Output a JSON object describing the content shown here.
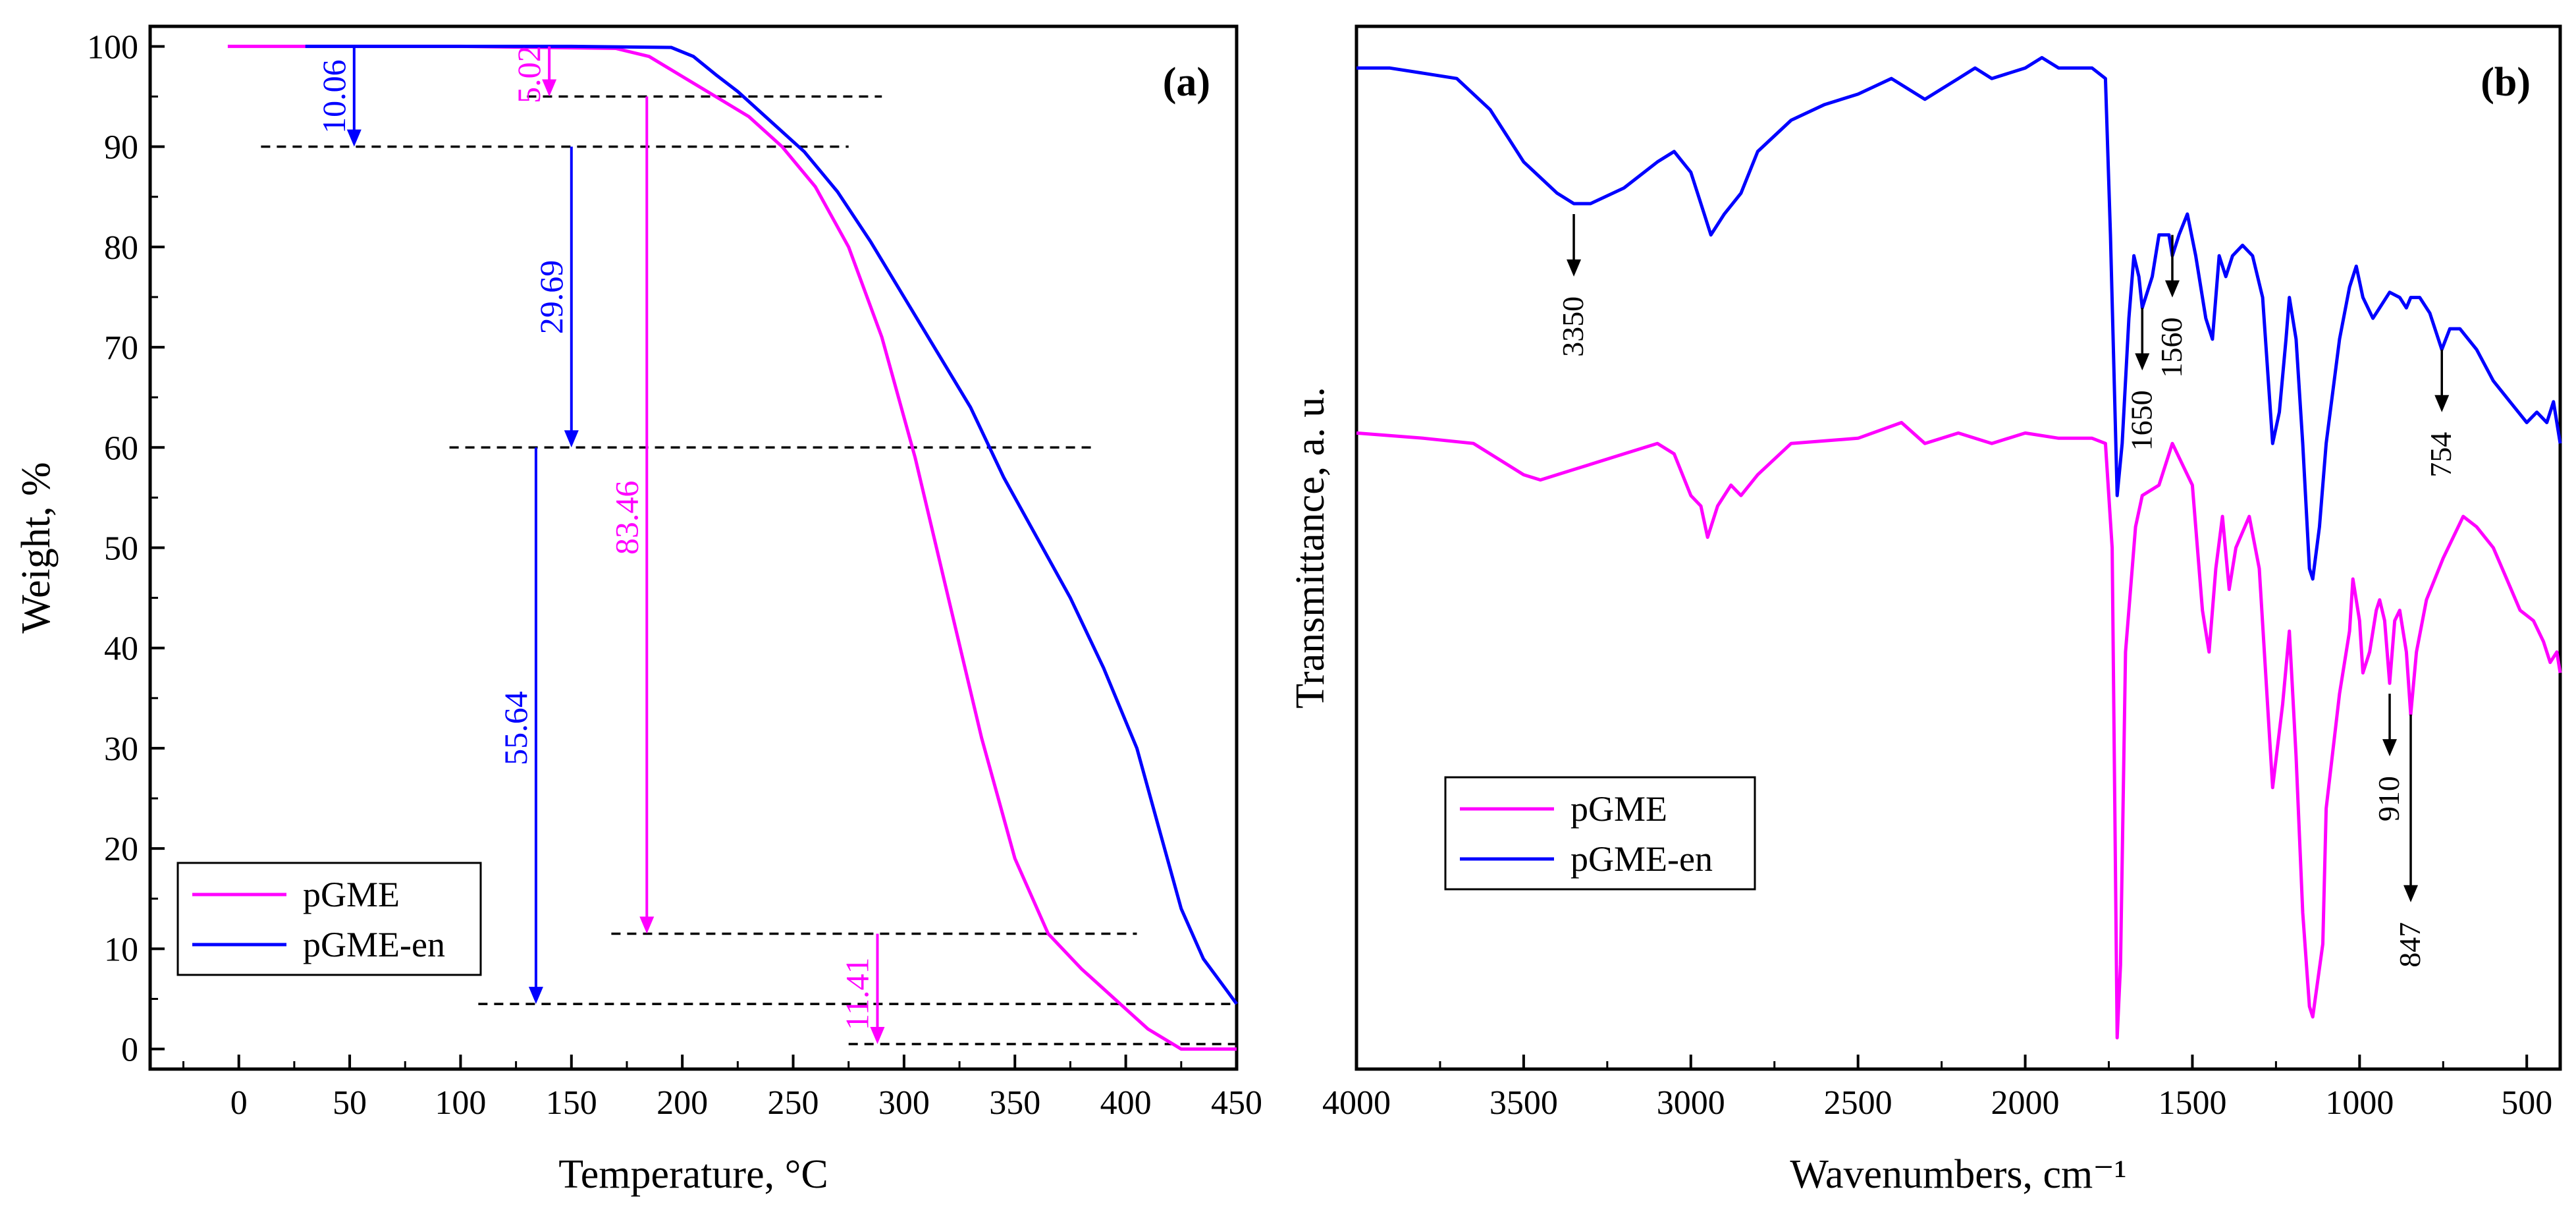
{
  "figure": {
    "font": "serif",
    "colors": {
      "pgme": "#ff00ff",
      "pgme_en": "#0000ff",
      "axis": "#000000",
      "annotation": "#000000"
    }
  },
  "chart_data": [
    {
      "id": "a",
      "type": "line",
      "panel_label": "(a)",
      "xlabel": "Temperature, °C",
      "ylabel": "Weight, %",
      "xlim": [
        -40,
        450
      ],
      "ylim": [
        -2,
        102
      ],
      "xticks": [
        0,
        50,
        100,
        150,
        200,
        250,
        300,
        350,
        400,
        450
      ],
      "yticks": [
        0,
        10,
        20,
        30,
        40,
        50,
        60,
        70,
        80,
        90,
        100
      ],
      "legend": {
        "position": "bottom-left",
        "entries": [
          "pGME",
          "pGME-en"
        ]
      },
      "series": [
        {
          "name": "pGME",
          "color": "#ff00ff",
          "points": [
            [
              -5,
              100
            ],
            [
              100,
              100
            ],
            [
              170,
              99.8
            ],
            [
              185,
              99
            ],
            [
              200,
              97
            ],
            [
              215,
              95
            ],
            [
              230,
              93
            ],
            [
              245,
              90
            ],
            [
              260,
              86
            ],
            [
              275,
              80
            ],
            [
              290,
              71
            ],
            [
              305,
              59
            ],
            [
              320,
              45
            ],
            [
              335,
              31
            ],
            [
              350,
              19
            ],
            [
              365,
              11.5
            ],
            [
              380,
              8
            ],
            [
              395,
              5
            ],
            [
              410,
              2
            ],
            [
              425,
              0
            ],
            [
              450,
              0
            ]
          ]
        },
        {
          "name": "pGME-en",
          "color": "#0000ff",
          "points": [
            [
              30,
              100
            ],
            [
              150,
              100
            ],
            [
              195,
              99.9
            ],
            [
              205,
              99
            ],
            [
              215,
              97.2
            ],
            [
              225,
              95.5
            ],
            [
              240,
              92.5
            ],
            [
              255,
              89.5
            ],
            [
              270,
              85.5
            ],
            [
              285,
              80.5
            ],
            [
              300,
              75
            ],
            [
              315,
              69.5
            ],
            [
              330,
              64
            ],
            [
              345,
              57
            ],
            [
              360,
              51
            ],
            [
              375,
              45
            ],
            [
              390,
              38
            ],
            [
              405,
              30
            ],
            [
              415,
              22
            ],
            [
              425,
              14
            ],
            [
              435,
              9
            ],
            [
              445,
              6
            ],
            [
              450,
              4.5
            ]
          ]
        }
      ],
      "reference_lines": [
        {
          "y": 95,
          "x": [
            130,
            290
          ]
        },
        {
          "y": 90,
          "x": [
            10,
            275
          ]
        },
        {
          "y": 60,
          "x": [
            95,
            385
          ]
        },
        {
          "y": 11.5,
          "x": [
            168,
            405
          ]
        },
        {
          "y": 4.5,
          "x": [
            108,
            450
          ]
        },
        {
          "y": 0.5,
          "x": [
            275,
            450
          ]
        }
      ],
      "annotations": [
        {
          "text": "10.06",
          "color": "#0000ff",
          "x": 52,
          "from": 100,
          "to": 90,
          "label_y": 95
        },
        {
          "text": "5.02",
          "color": "#ff00ff",
          "x": 140,
          "from": 100,
          "to": 95,
          "label_y": 97.2
        },
        {
          "text": "29.69",
          "color": "#0000ff",
          "x": 150,
          "from": 90,
          "to": 60,
          "label_y": 75
        },
        {
          "text": "83.46",
          "color": "#ff00ff",
          "x": 184,
          "from": 95,
          "to": 11.5,
          "label_y": 53
        },
        {
          "text": "55.64",
          "color": "#0000ff",
          "x": 134,
          "from": 60,
          "to": 4.5,
          "label_y": 32
        },
        {
          "text": "11.41",
          "color": "#ff00ff",
          "x": 288,
          "from": 11.5,
          "to": 0.5,
          "label_y": 5.5
        }
      ]
    },
    {
      "id": "b",
      "type": "line",
      "panel_label": "(b)",
      "xlabel": "Wavenumbers, cm⁻¹",
      "ylabel": "Transmittance, a. u.",
      "xlim": [
        4000,
        400
      ],
      "ylim": [
        0,
        100
      ],
      "reversed_x": true,
      "xticks": [
        4000,
        3500,
        3000,
        2500,
        2000,
        1500,
        1000,
        500
      ],
      "y_tick_labels": false,
      "legend": {
        "position": "bottom-middle",
        "entries": [
          "pGME",
          "pGME-en"
        ]
      },
      "series": [
        {
          "name": "pGME",
          "color": "#ff00ff",
          "points": [
            [
              4000,
              61
            ],
            [
              3800,
              60.5
            ],
            [
              3650,
              60
            ],
            [
              3500,
              57
            ],
            [
              3450,
              56.5
            ],
            [
              3350,
              57.5
            ],
            [
              3200,
              59
            ],
            [
              3100,
              60
            ],
            [
              3050,
              59
            ],
            [
              3000,
              55
            ],
            [
              2970,
              54
            ],
            [
              2950,
              51
            ],
            [
              2920,
              54
            ],
            [
              2880,
              56
            ],
            [
              2850,
              55
            ],
            [
              2800,
              57
            ],
            [
              2700,
              60
            ],
            [
              2500,
              60.5
            ],
            [
              2370,
              62
            ],
            [
              2300,
              60
            ],
            [
              2200,
              61
            ],
            [
              2100,
              60
            ],
            [
              2000,
              61
            ],
            [
              1900,
              60.5
            ],
            [
              1800,
              60.5
            ],
            [
              1760,
              60
            ],
            [
              1740,
              50
            ],
            [
              1725,
              3
            ],
            [
              1715,
              10
            ],
            [
              1700,
              40
            ],
            [
              1670,
              52
            ],
            [
              1650,
              55
            ],
            [
              1600,
              56
            ],
            [
              1560,
              60
            ],
            [
              1530,
              58
            ],
            [
              1500,
              56
            ],
            [
              1470,
              44
            ],
            [
              1450,
              40
            ],
            [
              1430,
              48
            ],
            [
              1410,
              53
            ],
            [
              1390,
              46
            ],
            [
              1370,
              50
            ],
            [
              1330,
              53
            ],
            [
              1300,
              48
            ],
            [
              1260,
              27
            ],
            [
              1230,
              35
            ],
            [
              1210,
              42
            ],
            [
              1190,
              30
            ],
            [
              1170,
              15
            ],
            [
              1150,
              6
            ],
            [
              1140,
              5
            ],
            [
              1110,
              12
            ],
            [
              1100,
              25
            ],
            [
              1060,
              36
            ],
            [
              1030,
              42
            ],
            [
              1020,
              47
            ],
            [
              1000,
              43
            ],
            [
              990,
              38
            ],
            [
              970,
              40
            ],
            [
              950,
              44
            ],
            [
              940,
              45
            ],
            [
              925,
              43
            ],
            [
              910,
              37
            ],
            [
              895,
              43
            ],
            [
              880,
              44
            ],
            [
              860,
              40
            ],
            [
              847,
              34
            ],
            [
              830,
              40
            ],
            [
              800,
              45
            ],
            [
              750,
              49
            ],
            [
              720,
              51
            ],
            [
              690,
              53
            ],
            [
              650,
              52
            ],
            [
              600,
              50
            ],
            [
              560,
              47
            ],
            [
              520,
              44
            ],
            [
              480,
              43
            ],
            [
              450,
              41
            ],
            [
              430,
              39
            ],
            [
              410,
              40
            ],
            [
              400,
              38
            ]
          ]
        },
        {
          "name": "pGME-en",
          "color": "#0000ff",
          "points": [
            [
              4000,
              96
            ],
            [
              3900,
              96
            ],
            [
              3800,
              95.5
            ],
            [
              3700,
              95
            ],
            [
              3600,
              92
            ],
            [
              3500,
              87
            ],
            [
              3400,
              84
            ],
            [
              3350,
              83
            ],
            [
              3300,
              83
            ],
            [
              3200,
              84.5
            ],
            [
              3100,
              87
            ],
            [
              3050,
              88
            ],
            [
              3000,
              86
            ],
            [
              2960,
              82
            ],
            [
              2940,
              80
            ],
            [
              2900,
              82
            ],
            [
              2850,
              84
            ],
            [
              2800,
              88
            ],
            [
              2700,
              91
            ],
            [
              2600,
              92.5
            ],
            [
              2500,
              93.5
            ],
            [
              2400,
              95
            ],
            [
              2300,
              93
            ],
            [
              2200,
              95
            ],
            [
              2150,
              96
            ],
            [
              2100,
              95
            ],
            [
              2000,
              96
            ],
            [
              1950,
              97
            ],
            [
              1900,
              96
            ],
            [
              1800,
              96
            ],
            [
              1760,
              95
            ],
            [
              1745,
              80
            ],
            [
              1725,
              55
            ],
            [
              1710,
              60
            ],
            [
              1690,
              72
            ],
            [
              1675,
              78
            ],
            [
              1660,
              76
            ],
            [
              1650,
              73
            ],
            [
              1620,
              76
            ],
            [
              1600,
              80
            ],
            [
              1570,
              80
            ],
            [
              1560,
              78
            ],
            [
              1540,
              80
            ],
            [
              1515,
              82
            ],
            [
              1490,
              78
            ],
            [
              1460,
              72
            ],
            [
              1440,
              70
            ],
            [
              1420,
              78
            ],
            [
              1400,
              76
            ],
            [
              1380,
              78
            ],
            [
              1350,
              79
            ],
            [
              1320,
              78
            ],
            [
              1290,
              74
            ],
            [
              1260,
              60
            ],
            [
              1240,
              63
            ],
            [
              1220,
              70
            ],
            [
              1210,
              74
            ],
            [
              1190,
              70
            ],
            [
              1170,
              60
            ],
            [
              1150,
              48
            ],
            [
              1140,
              47
            ],
            [
              1120,
              52
            ],
            [
              1100,
              60
            ],
            [
              1060,
              70
            ],
            [
              1030,
              75
            ],
            [
              1010,
              77
            ],
            [
              990,
              74
            ],
            [
              960,
              72
            ],
            [
              940,
              73
            ],
            [
              910,
              74.5
            ],
            [
              880,
              74
            ],
            [
              860,
              73
            ],
            [
              847,
              74
            ],
            [
              820,
              74
            ],
            [
              790,
              72.5
            ],
            [
              754,
              69
            ],
            [
              730,
              71
            ],
            [
              700,
              71
            ],
            [
              650,
              69
            ],
            [
              600,
              66
            ],
            [
              550,
              64
            ],
            [
              500,
              62
            ],
            [
              470,
              63
            ],
            [
              440,
              62
            ],
            [
              420,
              64
            ],
            [
              400,
              60
            ]
          ]
        }
      ],
      "annotations": [
        {
          "text": "3350",
          "series": "pGME-en",
          "x": 3350,
          "from": 82,
          "to": 76
        },
        {
          "text": "1650",
          "series": "pGME-en",
          "x": 1650,
          "from": 73,
          "to": 67
        },
        {
          "text": "1560",
          "series": "pGME-en",
          "x": 1560,
          "from": 80,
          "to": 74
        },
        {
          "text": "754",
          "series": "pGME-en",
          "x": 754,
          "from": 69,
          "to": 63
        },
        {
          "text": "910",
          "series": "pGME",
          "x": 910,
          "from": 36,
          "to": 30
        },
        {
          "text": "847",
          "series": "pGME",
          "x": 847,
          "from": 34,
          "to": 16
        }
      ]
    }
  ]
}
